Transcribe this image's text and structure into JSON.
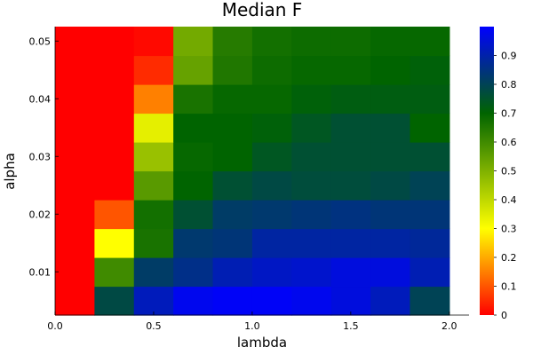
{
  "chart_data": {
    "type": "heatmap",
    "title": "Median F",
    "xlabel": "lambda",
    "ylabel": "alpha",
    "xlim": [
      0,
      2.1
    ],
    "ylim": [
      0.0025,
      0.0525
    ],
    "x_ticks": [
      0.0,
      0.5,
      1.0,
      1.5,
      2.0
    ],
    "x_tick_labels": [
      "0.0",
      "0.5",
      "1.0",
      "1.5",
      "2.0"
    ],
    "y_ticks": [
      0.01,
      0.02,
      0.03,
      0.04,
      0.05
    ],
    "y_tick_labels": [
      "0.01",
      "0.02",
      "0.03",
      "0.04",
      "0.05"
    ],
    "x_centers": [
      0.1,
      0.3,
      0.5,
      0.7,
      0.9,
      1.1,
      1.3,
      1.5,
      1.7,
      1.9
    ],
    "y_centers": [
      0.005,
      0.01,
      0.015,
      0.02,
      0.025,
      0.03,
      0.035,
      0.04,
      0.045,
      0.05
    ],
    "z": [
      [
        0.0,
        0.78,
        0.92,
        0.98,
        0.99,
        0.99,
        0.98,
        0.96,
        0.92,
        0.8
      ],
      [
        0.0,
        0.6,
        0.82,
        0.86,
        0.91,
        0.93,
        0.94,
        0.96,
        0.96,
        0.91
      ],
      [
        0.0,
        0.3,
        0.66,
        0.83,
        0.84,
        0.89,
        0.89,
        0.89,
        0.89,
        0.88
      ],
      [
        0.0,
        0.1,
        0.67,
        0.76,
        0.82,
        0.83,
        0.84,
        0.85,
        0.84,
        0.84
      ],
      [
        0.0,
        0.0,
        0.56,
        0.7,
        0.76,
        0.78,
        0.77,
        0.77,
        0.78,
        0.8
      ],
      [
        0.0,
        0.0,
        0.46,
        0.69,
        0.7,
        0.74,
        0.76,
        0.76,
        0.76,
        0.76
      ],
      [
        0.0,
        0.0,
        0.34,
        0.7,
        0.7,
        0.71,
        0.74,
        0.76,
        0.76,
        0.7
      ],
      [
        0.0,
        0.0,
        0.15,
        0.66,
        0.69,
        0.69,
        0.71,
        0.72,
        0.72,
        0.72
      ],
      [
        0.0,
        0.0,
        0.05,
        0.54,
        0.65,
        0.68,
        0.69,
        0.69,
        0.7,
        0.71
      ],
      [
        0.0,
        0.0,
        0.01,
        0.52,
        0.64,
        0.67,
        0.68,
        0.68,
        0.69,
        0.69
      ]
    ],
    "colorbar": {
      "range": [
        0,
        1
      ],
      "ticks": [
        0,
        0.1,
        0.2,
        0.3,
        0.4,
        0.5,
        0.6,
        0.7,
        0.8,
        0.9
      ],
      "tick_labels": [
        "0",
        "0.1",
        "0.2",
        "0.3",
        "0.4",
        "0.5",
        "0.6",
        "0.7",
        "0.8",
        "0.9"
      ],
      "stops": [
        {
          "v": 0.0,
          "color": "#ff0000"
        },
        {
          "v": 0.3,
          "color": "#ffff00"
        },
        {
          "v": 0.7,
          "color": "#006400"
        },
        {
          "v": 1.0,
          "color": "#0000ff"
        }
      ]
    },
    "grid": false,
    "legend": "none"
  }
}
